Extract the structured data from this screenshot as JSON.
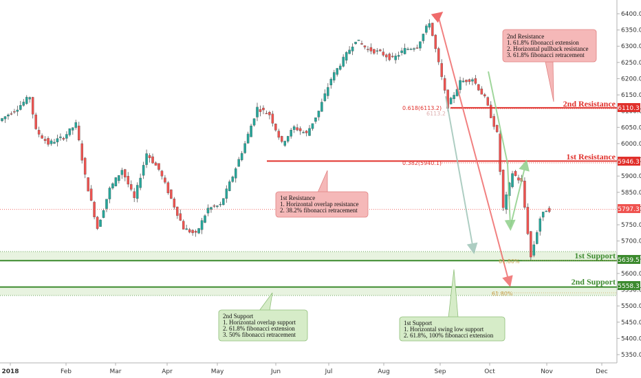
{
  "chart_data": {
    "type": "candlestick",
    "y_axis": {
      "min": 5330,
      "max": 6420,
      "ticks": [
        6400,
        6350,
        6300,
        6250,
        6200,
        6150,
        6100,
        6050,
        6000,
        5950,
        5900,
        5850,
        5800,
        5750,
        5700,
        5650,
        5600,
        5550,
        5500,
        5450,
        5400,
        5350
      ]
    },
    "x_axis": {
      "labels": [
        "2018",
        "Feb",
        "Mar",
        "Apr",
        "May",
        "Jun",
        "Jul",
        "Aug",
        "Sep",
        "Oct",
        "Nov",
        "Dec"
      ]
    },
    "price_anchors": [
      {
        "idx": 0,
        "p": 6070
      },
      {
        "idx": 6,
        "p": 6110
      },
      {
        "idx": 10,
        "p": 6145
      },
      {
        "idx": 12,
        "p": 6040
      },
      {
        "idx": 16,
        "p": 6000
      },
      {
        "idx": 21,
        "p": 6020
      },
      {
        "idx": 25,
        "p": 6060
      },
      {
        "idx": 28,
        "p": 5900
      },
      {
        "idx": 32,
        "p": 5740
      },
      {
        "idx": 36,
        "p": 5860
      },
      {
        "idx": 40,
        "p": 5920
      },
      {
        "idx": 44,
        "p": 5830
      },
      {
        "idx": 48,
        "p": 5970
      },
      {
        "idx": 52,
        "p": 5920
      },
      {
        "idx": 56,
        "p": 5830
      },
      {
        "idx": 60,
        "p": 5740
      },
      {
        "idx": 64,
        "p": 5720
      },
      {
        "idx": 68,
        "p": 5800
      },
      {
        "idx": 72,
        "p": 5810
      },
      {
        "idx": 76,
        "p": 5900
      },
      {
        "idx": 80,
        "p": 6000
      },
      {
        "idx": 84,
        "p": 6110
      },
      {
        "idx": 88,
        "p": 6090
      },
      {
        "idx": 92,
        "p": 6000
      },
      {
        "idx": 96,
        "p": 6050
      },
      {
        "idx": 100,
        "p": 6030
      },
      {
        "idx": 104,
        "p": 6100
      },
      {
        "idx": 108,
        "p": 6200
      },
      {
        "idx": 112,
        "p": 6260
      },
      {
        "idx": 116,
        "p": 6320
      },
      {
        "idx": 120,
        "p": 6290
      },
      {
        "idx": 124,
        "p": 6280
      },
      {
        "idx": 128,
        "p": 6260
      },
      {
        "idx": 132,
        "p": 6290
      },
      {
        "idx": 136,
        "p": 6300
      },
      {
        "idx": 140,
        "p": 6375
      },
      {
        "idx": 142,
        "p": 6290
      },
      {
        "idx": 146,
        "p": 6115
      },
      {
        "idx": 150,
        "p": 6190
      },
      {
        "idx": 154,
        "p": 6200
      },
      {
        "idx": 158,
        "p": 6140
      },
      {
        "idx": 162,
        "p": 6030
      },
      {
        "idx": 164,
        "p": 5800
      },
      {
        "idx": 167,
        "p": 5910
      },
      {
        "idx": 170,
        "p": 5880
      },
      {
        "idx": 173,
        "p": 5650
      },
      {
        "idx": 176,
        "p": 5770
      },
      {
        "idx": 178,
        "p": 5797
      }
    ],
    "levels": [
      {
        "name": "2nd Resistance",
        "value": 6110.3,
        "tag": "6110.3"
      },
      {
        "name": "1st Resistance",
        "value": 5946.3,
        "tag": "5946.3"
      },
      {
        "name": "1st Support",
        "value": 5639.5,
        "tag": "5639.5"
      },
      {
        "name": "2nd Support",
        "value": 5558.3,
        "tag": "5558.3"
      }
    ],
    "last_price": {
      "value": 5797.3,
      "tag": "5797.3"
    },
    "fib_labels": [
      "0.618(6113.2)",
      "0.382(5940.1)",
      "61.80%",
      "61.80%"
    ],
    "fib_overlap_label": "6113.2",
    "annotations": {
      "res2": [
        "2nd Resistance",
        "1. 61.8% fibonacci extension",
        "2. Horizontal pullback resistance",
        "3. 61.8% fibonacci retracement"
      ],
      "res1": [
        "1st Resistance",
        "1. Horizontal overlap resistance",
        "2. 38.2% fibonacci retracement"
      ],
      "sup2": [
        "2nd Support",
        "1. Horizontal overlap support",
        "2. 61.8% fibonacci extension",
        "3. 50% fibonacci retracement"
      ],
      "sup1": [
        "1st Support",
        "1. Horizontal swing low support",
        "2. 61.8%, 100% fibonacci extension"
      ]
    },
    "colors": {
      "up": "#26a69a",
      "down": "#ef5350",
      "resistance": "#e0302b",
      "support": "#3c8a2e",
      "res_box": "#f5b8b8",
      "sup_box": "#d6ecc8",
      "last_price": "#ef5350"
    }
  }
}
